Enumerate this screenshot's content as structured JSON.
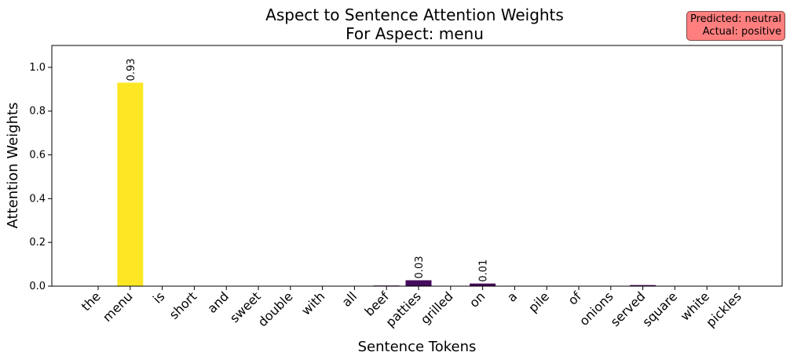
{
  "chart_data": {
    "type": "bar",
    "title": "Aspect to Sentence Attention Weights",
    "subtitle": "For Aspect: menu",
    "xlabel": "Sentence Tokens",
    "ylabel": "Attention Weights",
    "ylim": [
      0,
      1.1
    ],
    "yticks": [
      "0.0",
      "0.2",
      "0.4",
      "0.6",
      "0.8",
      "1.0"
    ],
    "categories": [
      "the",
      "menu",
      "is",
      "short",
      "and",
      "sweet",
      "double",
      "with",
      "all",
      "beef",
      "patties",
      "grilled",
      "on",
      "a",
      "pile",
      "of",
      "onions",
      "served",
      "square",
      "white",
      "pickles"
    ],
    "values": [
      0.0,
      0.93,
      0.0,
      0.0,
      0.0,
      0.0,
      0.0,
      0.0,
      0.0,
      0.003,
      0.027,
      0.0,
      0.012,
      0.0,
      0.0,
      0.0,
      0.0,
      0.005,
      0.0,
      0.0,
      0.0
    ],
    "data_labels": [
      {
        "index": 1,
        "text": "0.93"
      },
      {
        "index": 10,
        "text": "0.03"
      },
      {
        "index": 12,
        "text": "0.01"
      }
    ],
    "colormap": "viridis",
    "grid": false
  },
  "prediction_box": {
    "predicted": "Predicted: neutral",
    "actual": "Actual: positive",
    "background": "#ff7f7f"
  }
}
